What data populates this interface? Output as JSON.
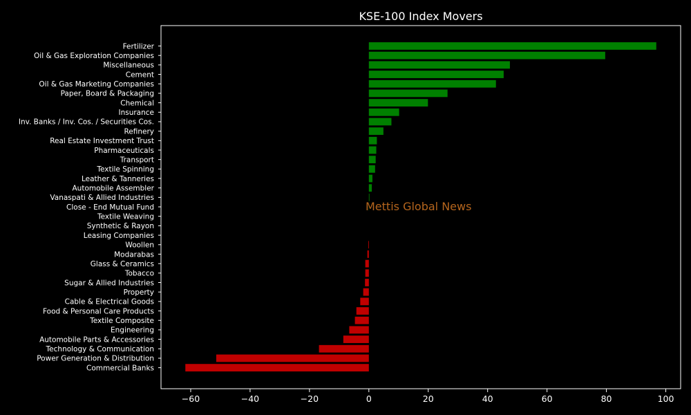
{
  "chart_data": {
    "type": "bar",
    "orientation": "horizontal",
    "title": "KSE-100 Index Movers",
    "xlabel": "",
    "ylabel": "",
    "xlim": [
      -70,
      105
    ],
    "xticks": [
      -60,
      -40,
      -20,
      0,
      20,
      40,
      60,
      80,
      100
    ],
    "xtick_labels": [
      "−60",
      "−40",
      "−20",
      "0",
      "20",
      "40",
      "60",
      "80",
      "100"
    ],
    "grid": false,
    "categories": [
      "Fertilizer",
      "Oil & Gas Exploration Companies",
      "Miscellaneous",
      "Cement",
      "Oil & Gas Marketing Companies",
      "Paper, Board & Packaging",
      "Chemical",
      "Insurance",
      "Inv. Banks / Inv. Cos. / Securities Cos.",
      "Refinery",
      "Real Estate Investment Trust",
      "Pharmaceuticals",
      "Transport",
      "Textile Spinning",
      "Leather & Tanneries",
      "Automobile Assembler",
      "Vanaspati & Allied Industries",
      "Close - End Mutual Fund",
      "Textile Weaving",
      "Synthetic & Rayon",
      "Leasing Companies",
      "Woollen",
      "Modarabas",
      "Glass & Ceramics",
      "Tobacco",
      "Sugar & Allied Industries",
      "Property",
      "Cable & Electrical Goods",
      "Food & Personal Care Products",
      "Textile Composite",
      "Engineering",
      "Automobile Parts & Accessories",
      "Technology & Communication",
      "Power Generation & Distribution",
      "Commercial Banks"
    ],
    "values": [
      96.8,
      79.6,
      47.5,
      45.4,
      42.8,
      26.5,
      19.9,
      10.2,
      7.6,
      4.9,
      2.7,
      2.5,
      2.3,
      2.1,
      1.2,
      1.0,
      0.2,
      0.05,
      0.0,
      0.0,
      0.0,
      -0.2,
      -0.5,
      -1.2,
      -1.2,
      -1.3,
      -1.9,
      -2.9,
      -4.2,
      -4.7,
      -6.6,
      -8.6,
      -16.8,
      -51.4,
      -61.8
    ],
    "positive_color": "#008000",
    "negative_color": "#c00000",
    "watermark": "Mettis Global News",
    "watermark_color": "#b5651d"
  }
}
